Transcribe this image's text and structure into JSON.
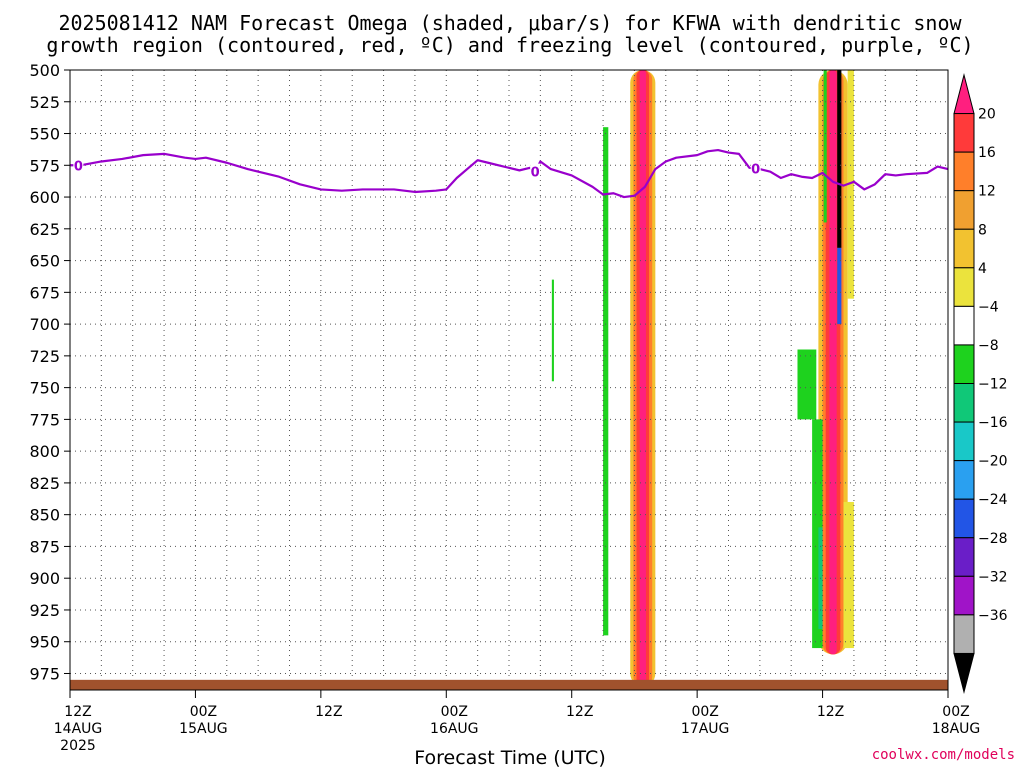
{
  "chart_data": {
    "type": "heatmap",
    "title_lines": [
      "2025081412 NAM Forecast Omega (shaded, μbar/s) for KFWA with dendritic snow",
      "growth region (contoured, red, ºC) and freezing level (contoured, purple, ºC)"
    ],
    "xlabel": "Forecast Time (UTC)",
    "credit": "coolwx.com/models",
    "x_range_hours": [
      0,
      84
    ],
    "y_levels_mb": [
      500,
      525,
      550,
      575,
      600,
      625,
      650,
      675,
      700,
      725,
      750,
      775,
      800,
      825,
      850,
      875,
      900,
      925,
      950,
      975
    ],
    "y_range_mb": [
      500,
      988
    ],
    "grid": true,
    "x_ticks": [
      {
        "hour": 0,
        "lines": [
          "12Z",
          "14AUG",
          "2025"
        ]
      },
      {
        "hour": 12,
        "lines": [
          "00Z",
          "15AUG"
        ]
      },
      {
        "hour": 24,
        "lines": [
          "12Z"
        ]
      },
      {
        "hour": 36,
        "lines": [
          "00Z",
          "16AUG"
        ]
      },
      {
        "hour": 48,
        "lines": [
          "12Z"
        ]
      },
      {
        "hour": 60,
        "lines": [
          "00Z",
          "17AUG"
        ]
      },
      {
        "hour": 72,
        "lines": [
          "12Z"
        ]
      },
      {
        "hour": 84,
        "lines": [
          "00Z",
          "18AUG"
        ]
      }
    ],
    "colorbar": {
      "labels": [
        "20",
        "16",
        "12",
        "8",
        "4",
        "−4",
        "−8",
        "−12",
        "−16",
        "−20",
        "−24",
        "−28",
        "−32",
        "−36"
      ],
      "colors": [
        "#ff1f7f",
        "#ff3a3a",
        "#ff7f2a",
        "#f0a030",
        "#f2c230",
        "#ebe33d",
        "#ffffff",
        "#1ed21e",
        "#10c878",
        "#19c8c8",
        "#2aa0f0",
        "#2255e6",
        "#6a1ec8",
        "#a014c8",
        "#b0b0b0",
        "#000000"
      ]
    },
    "freezing_level": {
      "label": "0",
      "color": "#9900cc",
      "label_hours": [
        0.8,
        44.5,
        65.6
      ],
      "points": [
        [
          0,
          575
        ],
        [
          1,
          575
        ],
        [
          3,
          572
        ],
        [
          5,
          570
        ],
        [
          7,
          567
        ],
        [
          9,
          566
        ],
        [
          11,
          569
        ],
        [
          12,
          570
        ],
        [
          13,
          569
        ],
        [
          15,
          573
        ],
        [
          17,
          578
        ],
        [
          20,
          584
        ],
        [
          22,
          590
        ],
        [
          24,
          594
        ],
        [
          26,
          595
        ],
        [
          28,
          594
        ],
        [
          31,
          594
        ],
        [
          33,
          596
        ],
        [
          35,
          595
        ],
        [
          36,
          594
        ],
        [
          37,
          585
        ],
        [
          38,
          578
        ],
        [
          39,
          571
        ],
        [
          40,
          573
        ],
        [
          41,
          575
        ],
        [
          42,
          577
        ],
        [
          43,
          579
        ],
        [
          44,
          577
        ],
        [
          44.5,
          580
        ],
        [
          45,
          572
        ],
        [
          46,
          578
        ],
        [
          48,
          583
        ],
        [
          50,
          592
        ],
        [
          51,
          598
        ],
        [
          52,
          597
        ],
        [
          53,
          600
        ],
        [
          54,
          599
        ],
        [
          55,
          592
        ],
        [
          56,
          578
        ],
        [
          57,
          572
        ],
        [
          58,
          569
        ],
        [
          60,
          567
        ],
        [
          61,
          564
        ],
        [
          62,
          563
        ],
        [
          63,
          565
        ],
        [
          64,
          566
        ],
        [
          65,
          577
        ],
        [
          66,
          578
        ],
        [
          67,
          580
        ],
        [
          68,
          585
        ],
        [
          69,
          582
        ],
        [
          70,
          584
        ],
        [
          71,
          585
        ],
        [
          72,
          581
        ],
        [
          73,
          588
        ],
        [
          74,
          591
        ],
        [
          75,
          588
        ],
        [
          76,
          594
        ],
        [
          77,
          590
        ],
        [
          78,
          582
        ],
        [
          79,
          583
        ],
        [
          80,
          582
        ],
        [
          82,
          581
        ],
        [
          83,
          576
        ],
        [
          84,
          578
        ]
      ]
    },
    "omega_plumes": [
      {
        "band": [
          [
            [
              54.8,
              500
            ],
            [
              55.3,
              500
            ],
            [
              55.2,
              520
            ],
            [
              55.5,
              540
            ]
          ],
          [
            [
              53.5,
              980
            ],
            [
              54.2,
              985
            ],
            [
              55.0,
              982
            ],
            [
              55.8,
              970
            ]
          ]
        ]
      }
    ]
  }
}
